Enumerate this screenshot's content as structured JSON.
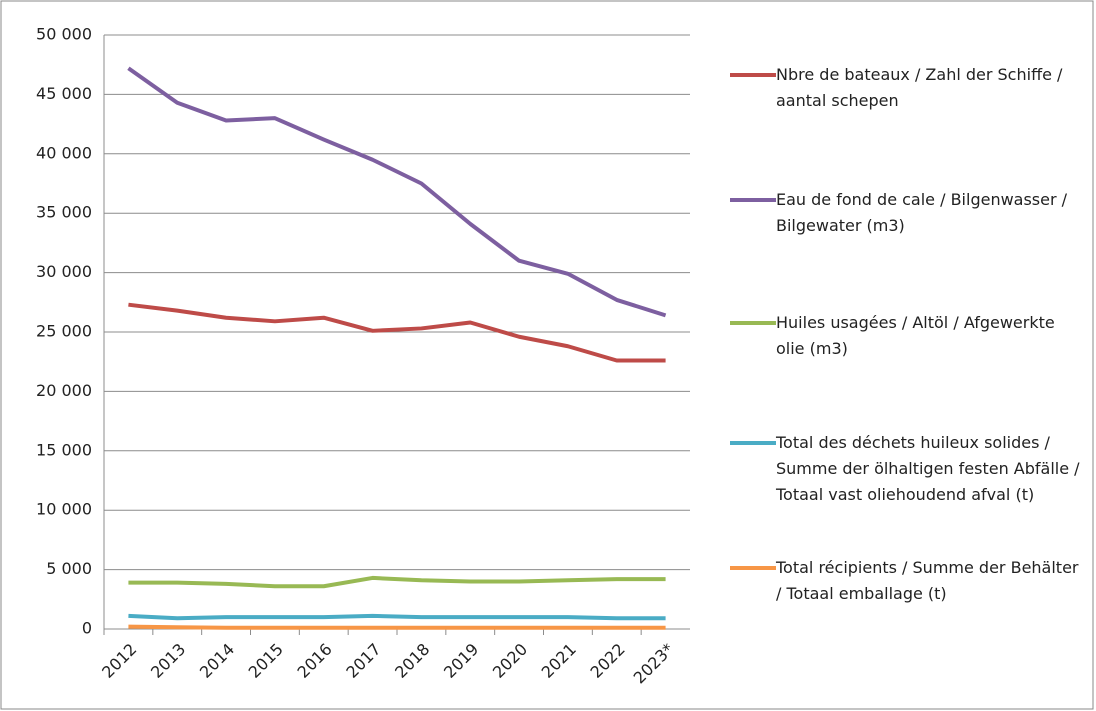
{
  "chart_data": {
    "type": "line",
    "categories": [
      "2012",
      "2013",
      "2014",
      "2015",
      "2016",
      "2017",
      "2018",
      "2019",
      "2020",
      "2021",
      "2022",
      "2023*"
    ],
    "series": [
      {
        "name": "Nbre de bateaux / Zahl der Schiffe / aantal schepen",
        "color": "#be4b48",
        "values": [
          27300,
          26800,
          26200,
          25900,
          26200,
          25100,
          25300,
          25800,
          24600,
          23800,
          22600,
          22600
        ]
      },
      {
        "name": "Eau de fond de cale / Bilgenwasser / Bilgewater (m3)",
        "color": "#7d5fa0",
        "values": [
          47200,
          44300,
          42800,
          43000,
          41200,
          39500,
          37500,
          34100,
          31000,
          29900,
          27700,
          26400
        ]
      },
      {
        "name": "Huiles usagées / Altöl / Afgewerkte olie (m3)",
        "color": "#98b954",
        "values": [
          3900,
          3900,
          3800,
          3600,
          3600,
          4300,
          4100,
          4000,
          4000,
          4100,
          4200,
          4200
        ]
      },
      {
        "name": "Total des déchets huileux solides / Summe der ölhaltigen festen Abfälle / Totaal vast oliehoudend afval (t)",
        "color": "#4aacc5",
        "values": [
          1100,
          900,
          1000,
          1000,
          1000,
          1100,
          1000,
          1000,
          1000,
          1000,
          900,
          900
        ]
      },
      {
        "name": "Total récipients / Summe der Behälter / Totaal emballage  (t)",
        "color": "#f79646",
        "values": [
          200,
          150,
          100,
          100,
          100,
          100,
          100,
          100,
          100,
          100,
          100,
          100
        ]
      }
    ],
    "ylim": [
      0,
      50000
    ],
    "yticks": [
      0,
      {
        "value": 5000,
        "label": "5 000"
      },
      {
        "value": 10000,
        "label": "10 000"
      },
      {
        "value": 15000,
        "label": "15 000"
      },
      {
        "value": 20000,
        "label": "20 000"
      },
      {
        "value": 25000,
        "label": "25 000"
      },
      {
        "value": 30000,
        "label": "30 000"
      },
      {
        "value": 35000,
        "label": "35 000"
      },
      {
        "value": 40000,
        "label": "40 000"
      },
      {
        "value": 45000,
        "label": "45 000"
      },
      {
        "value": 50000,
        "label": "50 000"
      }
    ],
    "grid": true,
    "legend": "right"
  }
}
